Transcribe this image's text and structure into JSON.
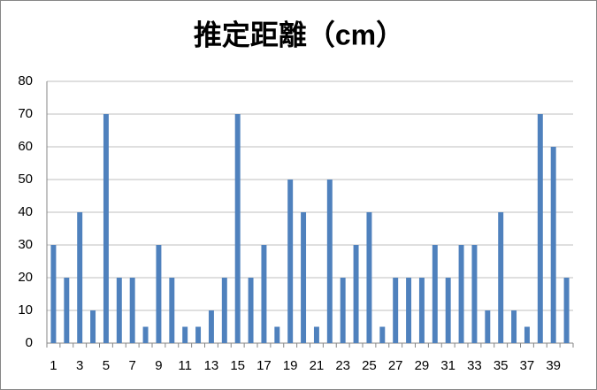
{
  "chart_data": {
    "type": "bar",
    "title": "推定距離（cm）",
    "categories": [
      "1",
      null,
      "3",
      null,
      "5",
      null,
      "7",
      null,
      "9",
      null,
      "11",
      null,
      "13",
      null,
      "15",
      null,
      "17",
      null,
      "19",
      null,
      "21",
      null,
      "23",
      null,
      "25",
      null,
      "27",
      null,
      "29",
      null,
      "31",
      null,
      "33",
      null,
      "35",
      null,
      "37",
      null,
      "39",
      null
    ],
    "values": [
      30,
      20,
      40,
      10,
      70,
      20,
      20,
      5,
      30,
      20,
      5,
      5,
      10,
      20,
      70,
      20,
      30,
      5,
      50,
      40,
      5,
      50,
      20,
      30,
      40,
      5,
      20,
      20,
      20,
      30,
      20,
      30,
      30,
      10,
      40,
      10,
      5,
      70,
      60,
      20
    ],
    "color": "#4f81bd",
    "ylim": [
      0,
      80
    ],
    "yticks": [
      0,
      10,
      20,
      30,
      40,
      50,
      60,
      70,
      80
    ],
    "grid": true
  }
}
